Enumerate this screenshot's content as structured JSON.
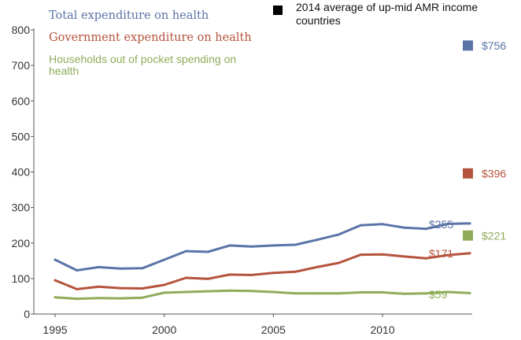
{
  "chart_data": {
    "type": "line",
    "title": "",
    "xlabel": "",
    "ylabel": "",
    "xlim": [
      1995,
      2014
    ],
    "ylim": [
      0,
      800
    ],
    "x_ticks": [
      "1995",
      "2000",
      "2005",
      "2010"
    ],
    "y_ticks": [
      "0",
      "100",
      "200",
      "300",
      "400",
      "500",
      "600",
      "700",
      "800"
    ],
    "x": [
      1995,
      1996,
      1997,
      1998,
      1999,
      2000,
      2001,
      2002,
      2003,
      2004,
      2005,
      2006,
      2007,
      2008,
      2009,
      2010,
      2011,
      2012,
      2013,
      2014
    ],
    "grid": false,
    "legend_position": "top",
    "benchmark_legend": "2014 average of up-mid AMR income countries",
    "series": [
      {
        "name": "Total expenditure on health",
        "color": "#5a74a8",
        "values": [
          153,
          123,
          132,
          128,
          129,
          153,
          177,
          175,
          193,
          190,
          193,
          195,
          209,
          224,
          250,
          253,
          243,
          240,
          254,
          255
        ],
        "end_label": "$255",
        "benchmark_value": 756,
        "benchmark_label": "$756"
      },
      {
        "name": "Government expenditure on health",
        "color": "#b5533c",
        "values": [
          95,
          70,
          77,
          73,
          72,
          82,
          102,
          99,
          111,
          110,
          116,
          119,
          132,
          144,
          167,
          168,
          162,
          157,
          166,
          171
        ],
        "end_label": "$171",
        "benchmark_value": 396,
        "benchmark_label": "$396"
      },
      {
        "name": "Households out of pocket spending on health",
        "color": "#8fac5a",
        "values": [
          47,
          43,
          45,
          44,
          46,
          60,
          62,
          64,
          66,
          65,
          62,
          58,
          58,
          58,
          61,
          61,
          57,
          58,
          62,
          59
        ],
        "end_label": "$59",
        "benchmark_value": 221,
        "benchmark_label": "$221"
      }
    ],
    "benchmark_color": "#000000"
  }
}
